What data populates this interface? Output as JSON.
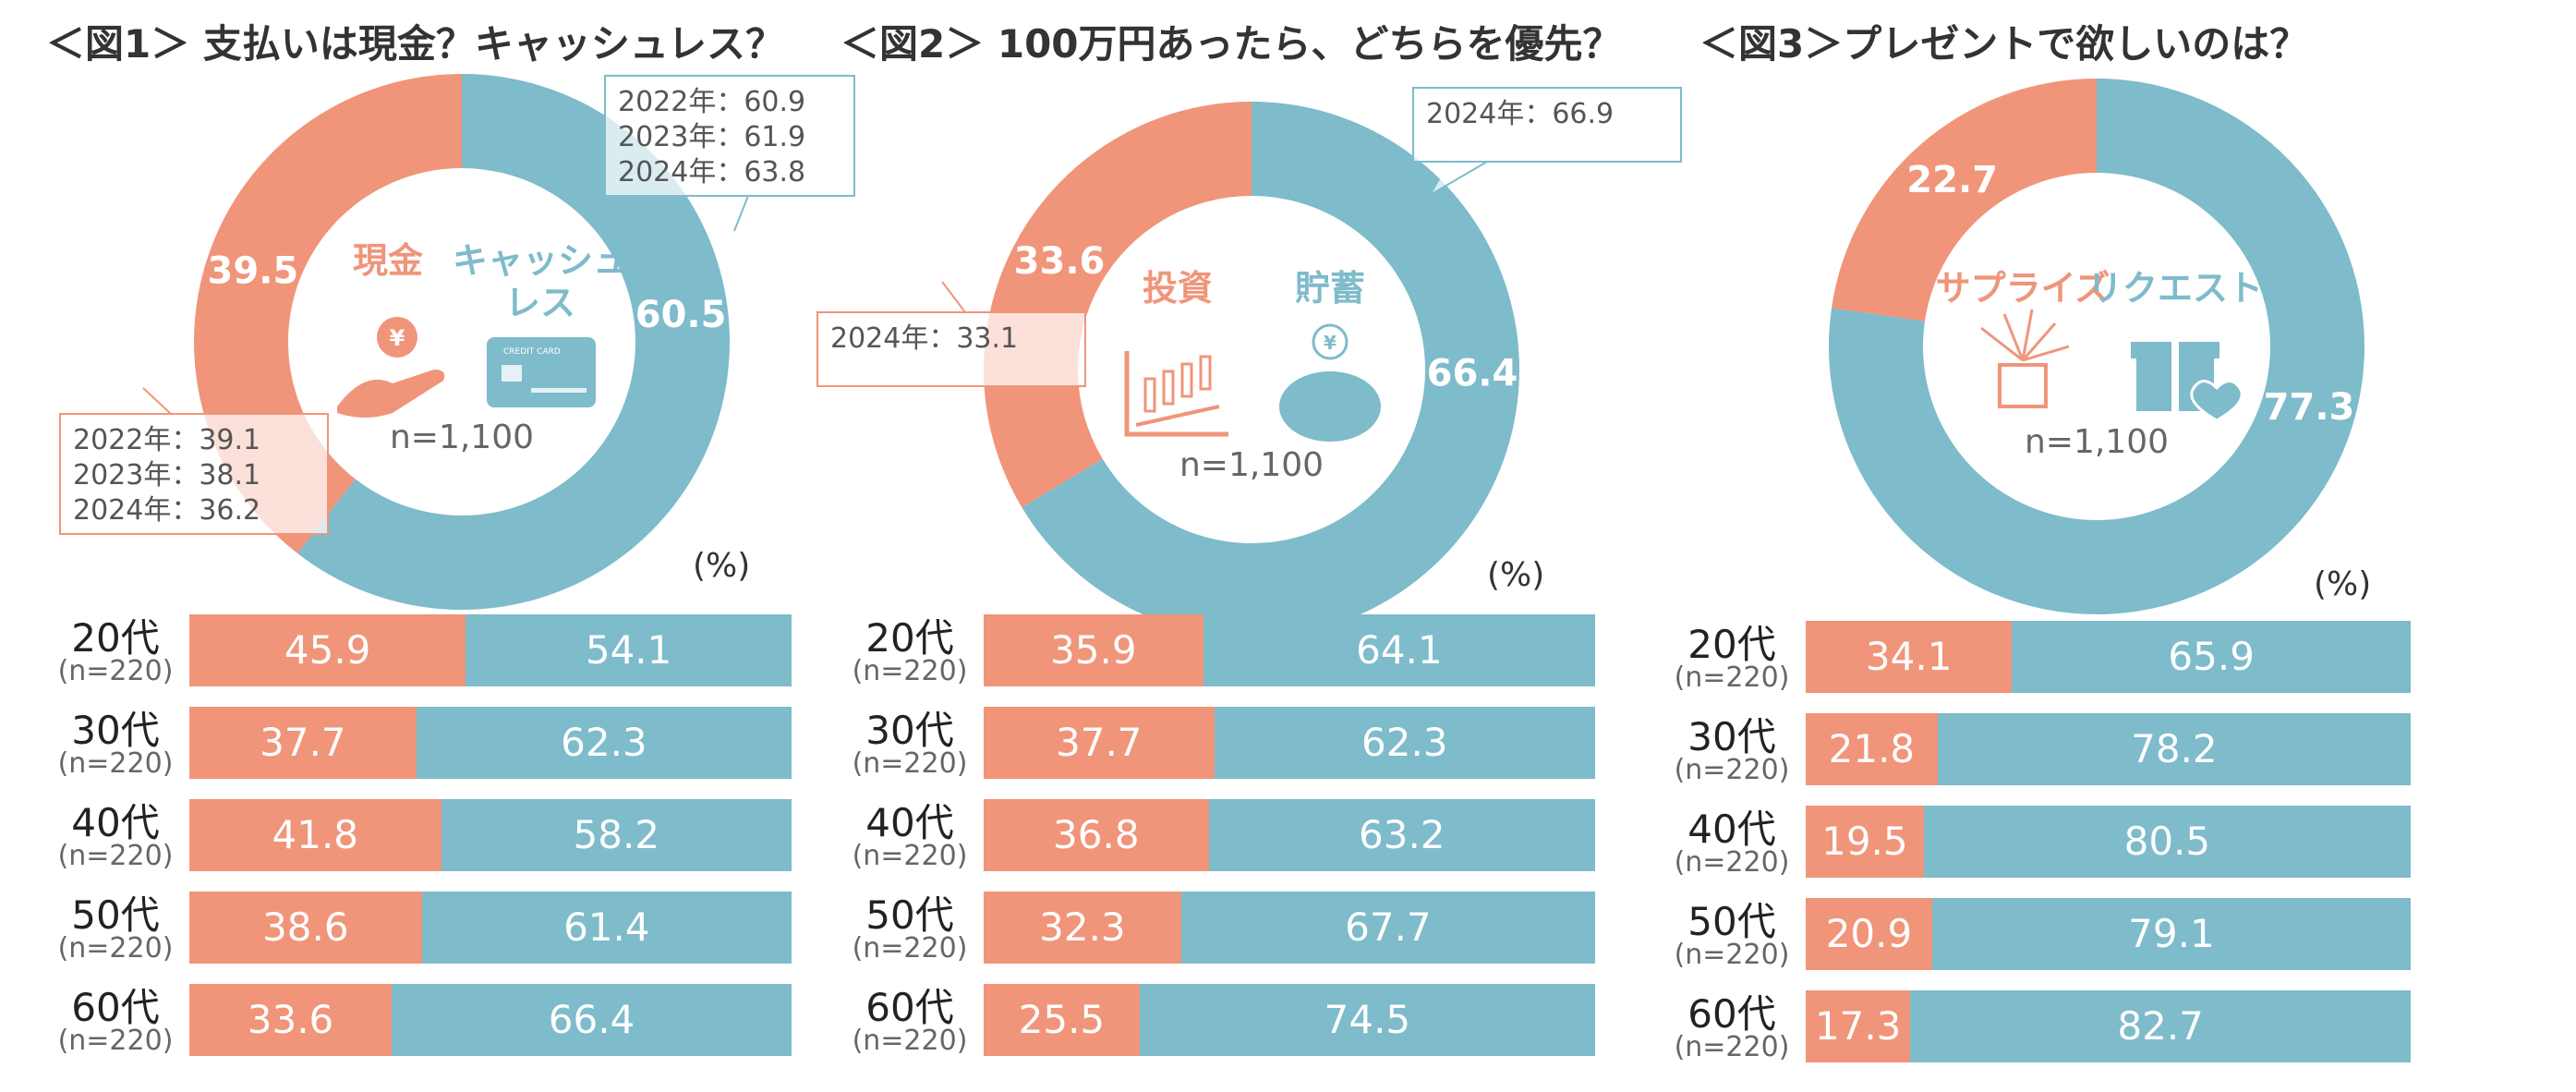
{
  "colors": {
    "cash": "#F0957A",
    "cashless": "#7EBBCB",
    "text_dark": "#333333",
    "text_gray": "#666666"
  },
  "n_total": "n=1,100",
  "unit": "(%)",
  "panels": [
    {
      "title": "＜図1＞ 支払いは現金？キャッシュレス？",
      "left_label": "現金",
      "right_label": "キャッシュ\nレス",
      "left_label_lines": [
        "現金"
      ],
      "right_label_lines": [
        "キャッシュ",
        "レス"
      ],
      "left_icon": "hand-coin-icon",
      "right_icon": "credit-card-icon",
      "card_text": "CREDIT CARD",
      "callouts": {
        "cashless": [
          "2022年：60.9",
          "2023年：61.9",
          "2024年：63.8"
        ],
        "cash": [
          "2022年：39.1",
          "2023年：38.1",
          "2024年：36.2"
        ]
      }
    },
    {
      "title": "＜図2＞ 100万円あったら、どちらを優先？",
      "left_label_lines": [
        "投資"
      ],
      "right_label_lines": [
        "貯蓄"
      ],
      "left_icon": "candlestick-chart-icon",
      "right_icon": "piggy-bank-icon",
      "callouts": {
        "right": [
          "2024年：66.9"
        ],
        "left": [
          "2024年：33.1"
        ]
      }
    },
    {
      "title": "＜図3＞プレゼントで欲しいのは？",
      "left_label_lines": [
        "サプライズ"
      ],
      "right_label_lines": [
        "リクエスト"
      ],
      "left_icon": "surprise-gift-icon",
      "right_icon": "gift-heart-icon",
      "callouts": {}
    }
  ],
  "chart_data": [
    {
      "type": "pie",
      "title": "＜図1＞ 支払いは現金？キャッシュレス？",
      "categories": [
        "現金",
        "キャッシュレス"
      ],
      "values": [
        39.5,
        60.5
      ],
      "n": "n=1,100"
    },
    {
      "type": "bar",
      "title": "",
      "categories": [
        "20代",
        "30代",
        "40代",
        "50代",
        "60代"
      ],
      "n_labels": [
        "(n=220)",
        "(n=220)",
        "(n=220)",
        "(n=220)",
        "(n=220)"
      ],
      "series": [
        {
          "values": [
            45.9,
            37.7,
            41.8,
            38.6,
            33.6
          ]
        },
        {
          "values": [
            54.1,
            62.3,
            58.2,
            61.4,
            66.4
          ]
        }
      ]
    },
    {
      "type": "pie",
      "title": "＜図2＞ 100万円あったら、どちらを優先？",
      "categories": [
        "投資",
        "貯蓄"
      ],
      "values": [
        33.6,
        66.4
      ],
      "n": "n=1,100"
    },
    {
      "type": "bar",
      "title": "",
      "categories": [
        "20代",
        "30代",
        "40代",
        "50代",
        "60代"
      ],
      "n_labels": [
        "(n=220)",
        "(n=220)",
        "(n=220)",
        "(n=220)",
        "(n=220)"
      ],
      "series": [
        {
          "values": [
            35.9,
            37.7,
            36.8,
            32.3,
            25.5
          ]
        },
        {
          "values": [
            64.1,
            62.3,
            63.2,
            67.7,
            74.5
          ]
        }
      ]
    },
    {
      "type": "pie",
      "title": "＜図3＞プレゼントで欲しいのは？",
      "categories": [
        "サプライズ",
        "リクエスト"
      ],
      "values": [
        22.7,
        77.3
      ],
      "n": "n=1,100"
    },
    {
      "type": "bar",
      "title": "",
      "categories": [
        "20代",
        "30代",
        "40代",
        "50代",
        "60代"
      ],
      "n_labels": [
        "(n=220)",
        "(n=220)",
        "(n=220)",
        "(n=220)",
        "(n=220)"
      ],
      "series": [
        {
          "values": [
            34.1,
            21.8,
            19.5,
            20.9,
            17.3
          ]
        },
        {
          "values": [
            65.9,
            78.2,
            80.5,
            79.1,
            82.7
          ]
        }
      ]
    }
  ]
}
